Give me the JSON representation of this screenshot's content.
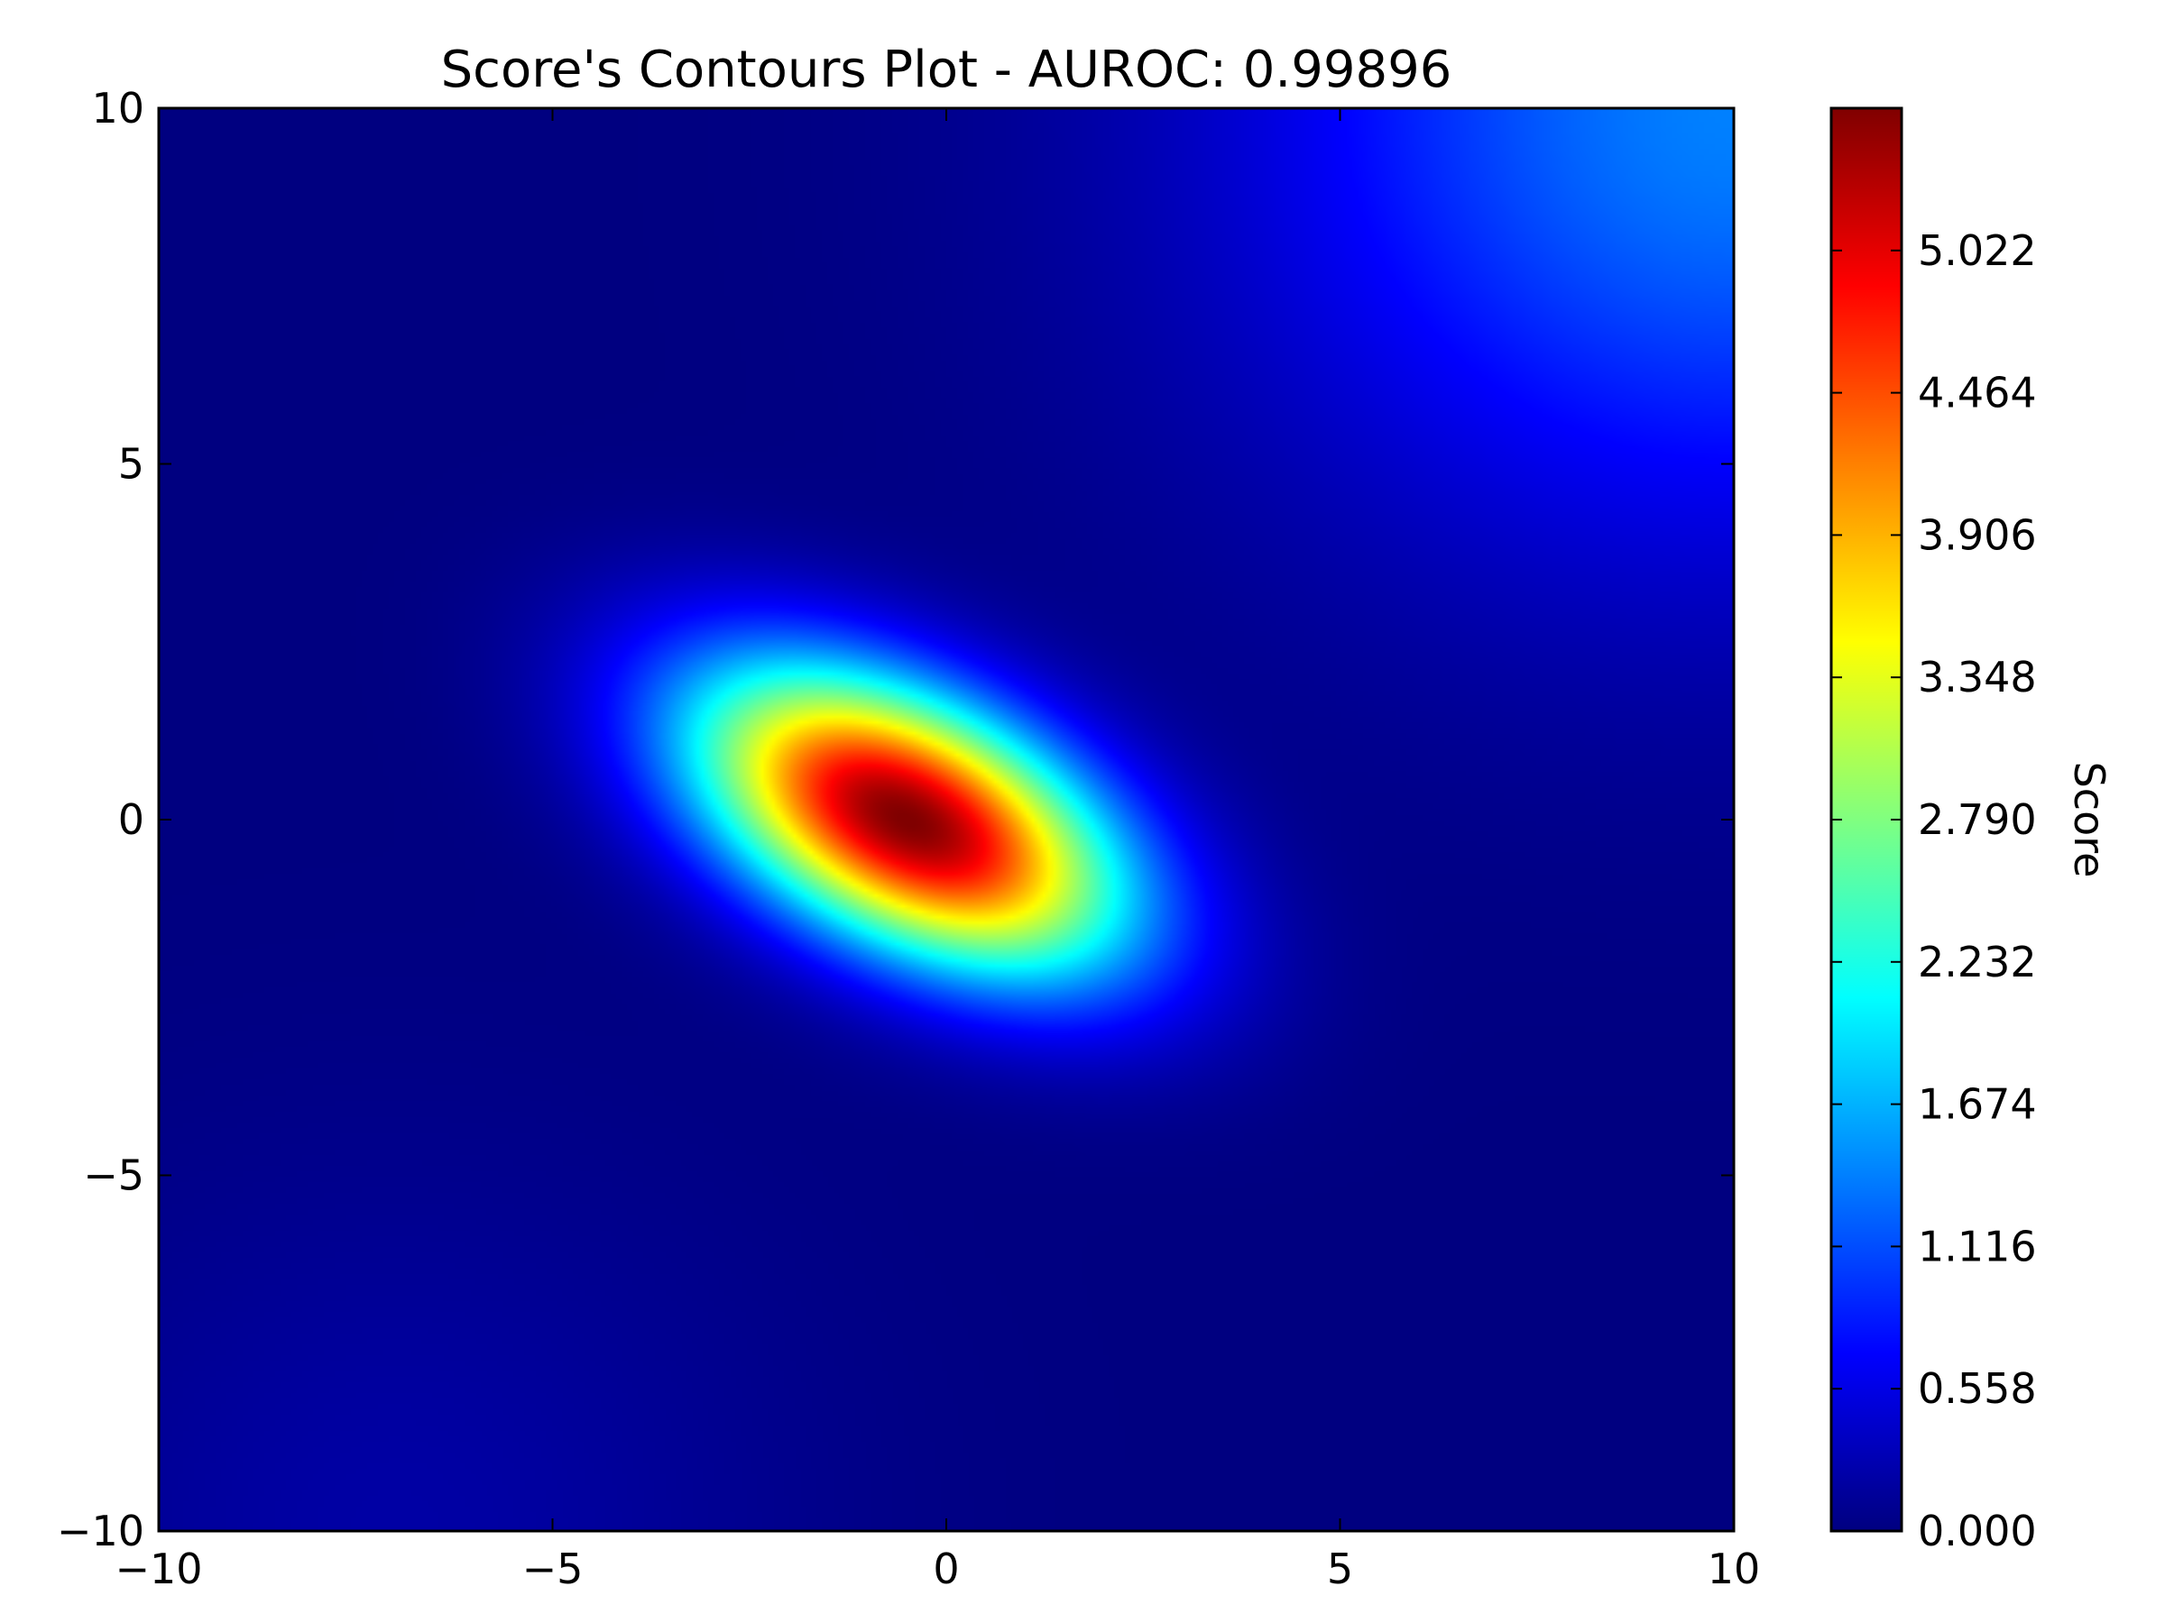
{
  "chart_data": {
    "type": "heatmap",
    "title": "Score's Contours Plot - AUROC: 0.99896",
    "xlabel": "",
    "ylabel": "",
    "xlim": [
      -10,
      10
    ],
    "ylim": [
      -10,
      10
    ],
    "x_ticks": [
      -10,
      -5,
      0,
      5,
      10
    ],
    "x_tick_labels": [
      "−10",
      "−5",
      "0",
      "5",
      "10"
    ],
    "y_ticks": [
      -10,
      -5,
      0,
      5,
      10
    ],
    "y_tick_labels": [
      "−10",
      "−5",
      "0",
      "5",
      "10"
    ],
    "grid": false,
    "colormap": "jet",
    "colorbar": {
      "label": "Score",
      "range": [
        0.0,
        5.58
      ],
      "ticks": [
        0.0,
        0.558,
        1.116,
        1.674,
        2.232,
        2.79,
        3.348,
        3.906,
        4.464,
        5.022
      ],
      "tick_labels": [
        "0.000",
        "0.558",
        "1.116",
        "1.674",
        "2.232",
        "2.790",
        "3.348",
        "3.906",
        "4.464",
        "5.022"
      ]
    },
    "score_field": {
      "peak": {
        "x": -0.5,
        "y": 0.0,
        "score": 5.58
      },
      "major_axis_direction": "upper-left to lower-right",
      "high_region_extent": {
        "x": [
          -3.5,
          3.5
        ],
        "y": [
          -3.5,
          3.5
        ]
      },
      "secondary_rise": {
        "location": "top-right corner (x≈10, y≈10)",
        "score": 1.4
      },
      "background_score": 0.0
    }
  }
}
